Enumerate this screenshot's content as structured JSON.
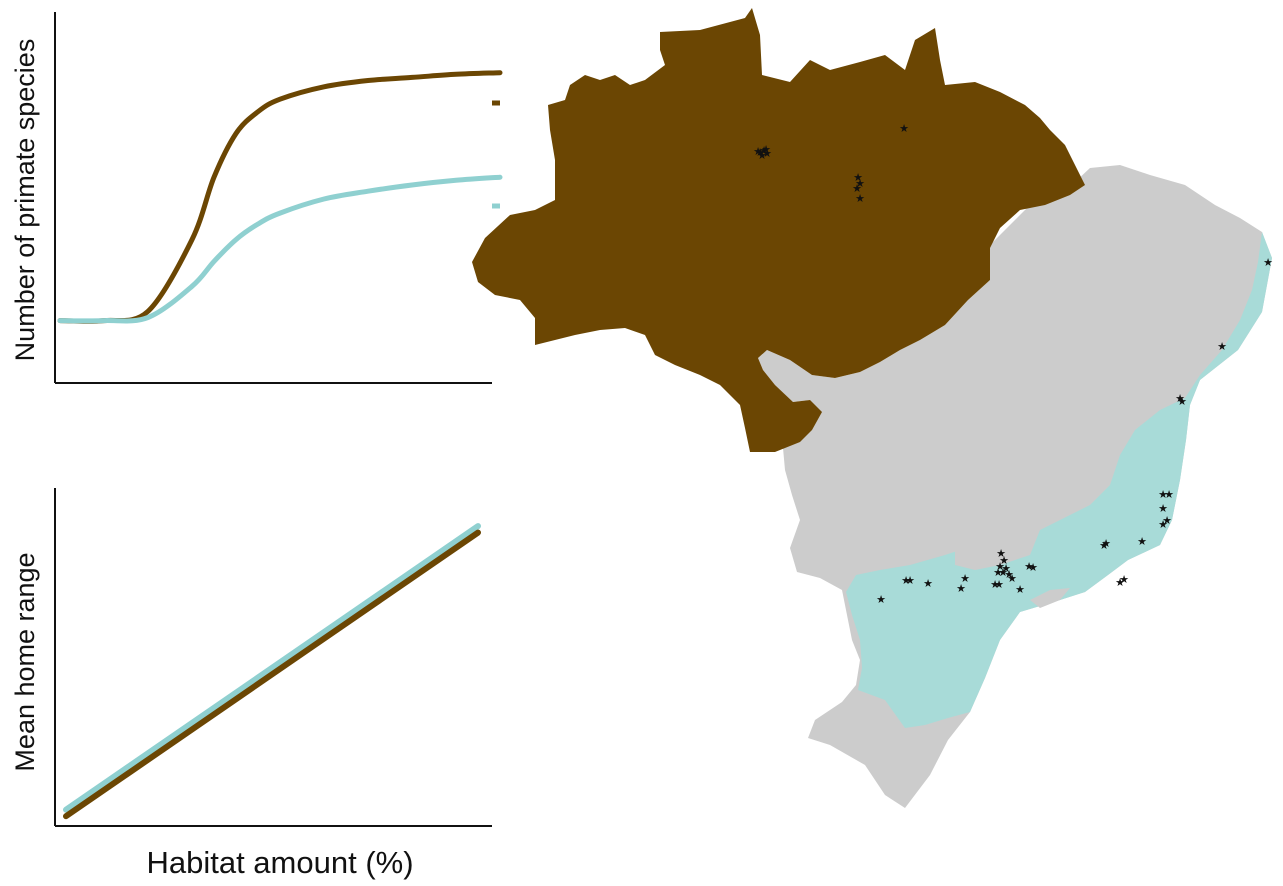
{
  "colors": {
    "amazon": "#6b4603",
    "atlantic_forest": "#a8dbd8",
    "other_brazil": "#cccccc",
    "amazon_line": "#6b4603",
    "atlantic_line": "#8fd0d0",
    "axis": "#111111",
    "marker": "#111111"
  },
  "top_panel": {
    "ylabel": "Number of primate species",
    "xlabel": ""
  },
  "bottom_panel": {
    "ylabel": "Mean home range",
    "xlabel": "Habitat amount (%)"
  },
  "chart_data": [
    {
      "type": "line",
      "title": "",
      "xlabel": "",
      "ylabel": "Number of primate species",
      "grid": false,
      "x": [
        0,
        10,
        20,
        30,
        35,
        40,
        45,
        50,
        60,
        70,
        80,
        90,
        100
      ],
      "series": [
        {
          "values": [
            2.0,
            2.0,
            2.3,
            4.6,
            6.6,
            8.0,
            8.7,
            9.1,
            9.5,
            9.7,
            9.8,
            9.9,
            9.95
          ]
        },
        {
          "values": [
            2.0,
            2.0,
            2.1,
            3.1,
            3.9,
            4.6,
            5.1,
            5.45,
            5.9,
            6.15,
            6.35,
            6.5,
            6.6
          ]
        }
      ]
    },
    {
      "type": "line",
      "title": "",
      "xlabel": "Habitat amount (%)",
      "ylabel": "Mean home range",
      "grid": false,
      "x": [
        0,
        100
      ],
      "series": [
        {
          "values": [
            0.3,
            9.0
          ]
        },
        {
          "values": [
            0.5,
            9.2
          ]
        }
      ]
    }
  ],
  "map": {
    "marker_symbol": "★"
  }
}
